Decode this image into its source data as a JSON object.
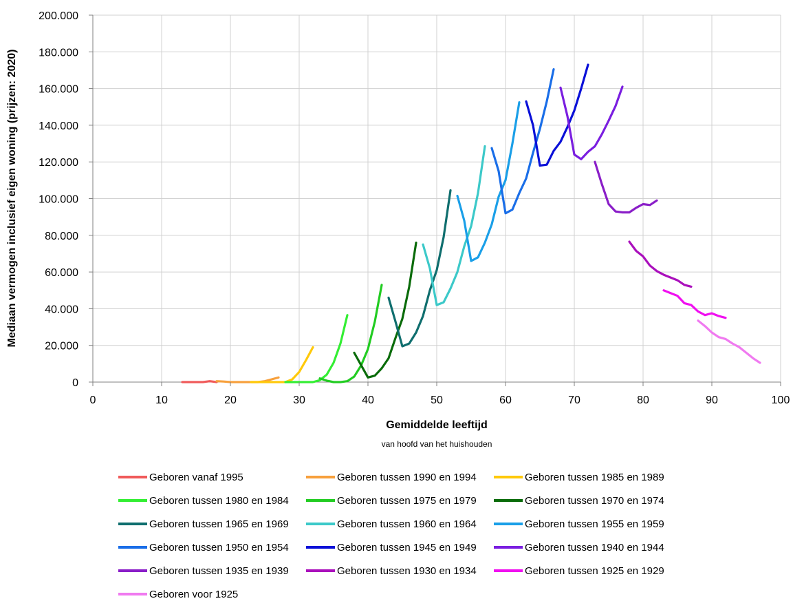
{
  "chart_data": {
    "type": "line",
    "xlabel": "Gemiddelde leeftijd",
    "xlabel_sub": "van hoofd van het huishouden",
    "ylabel": "Mediaan vermogen inclusief eigen woning (prijzen: 2020)",
    "xlim": [
      0,
      100
    ],
    "ylim": [
      0,
      200000
    ],
    "x_ticks": [
      0,
      10,
      20,
      30,
      40,
      50,
      60,
      70,
      80,
      90,
      100
    ],
    "x_tick_labels": [
      "0",
      "10",
      "20",
      "30",
      "40",
      "50",
      "60",
      "70",
      "80",
      "90",
      "100"
    ],
    "y_ticks": [
      0,
      20000,
      40000,
      60000,
      80000,
      100000,
      120000,
      140000,
      160000,
      180000,
      200000
    ],
    "y_tick_labels": [
      "0",
      "20.000",
      "40.000",
      "60.000",
      "80.000",
      "100.000",
      "120.000",
      "140.000",
      "160.000",
      "180.000",
      "200.000"
    ],
    "grid": true,
    "legend_position": "bottom",
    "series": [
      {
        "name": "Geboren vanaf 1995",
        "color": "#f05a5a",
        "x": [
          13,
          14,
          15,
          16,
          17,
          18
        ],
        "y": [
          0,
          0,
          0,
          0,
          500,
          0
        ]
      },
      {
        "name": "Geboren tussen 1990 en 1994",
        "color": "#f7a03c",
        "x": [
          18,
          19,
          20,
          21,
          22,
          23,
          24,
          25,
          26,
          27
        ],
        "y": [
          500,
          300,
          0,
          0,
          0,
          0,
          0,
          500,
          1500,
          2500
        ]
      },
      {
        "name": "Geboren tussen 1985 en 1989",
        "color": "#ffc90a",
        "x": [
          23,
          24,
          25,
          26,
          27,
          28,
          29,
          30,
          31,
          32
        ],
        "y": [
          0,
          0,
          0,
          0,
          0,
          0,
          1500,
          5500,
          12000,
          19000
        ]
      },
      {
        "name": "Geboren tussen 1980 en 1984",
        "color": "#33ee33",
        "x": [
          28,
          29,
          30,
          31,
          32,
          33,
          34,
          35,
          36,
          37
        ],
        "y": [
          0,
          0,
          0,
          0,
          0,
          1000,
          4000,
          10500,
          21000,
          36500
        ]
      },
      {
        "name": "Geboren tussen 1975 en 1979",
        "color": "#22cc22",
        "x": [
          33,
          34,
          35,
          36,
          37,
          38,
          39,
          40,
          41,
          42
        ],
        "y": [
          2000,
          800,
          0,
          0,
          500,
          3000,
          9000,
          18000,
          33000,
          53000
        ]
      },
      {
        "name": "Geboren tussen 1970 en 1974",
        "color": "#0a6b0a",
        "x": [
          38,
          40,
          41,
          42,
          43,
          44,
          45,
          46,
          47
        ],
        "y": [
          16000,
          2500,
          3500,
          7500,
          13000,
          24000,
          34500,
          52000,
          76000
        ]
      },
      {
        "name": "Geboren tussen 1965 en 1969",
        "color": "#0f6e6e",
        "x": [
          43,
          44,
          45,
          46,
          47,
          48,
          49,
          50,
          51,
          52
        ],
        "y": [
          46000,
          33000,
          19500,
          21000,
          27000,
          36000,
          50000,
          61000,
          79000,
          104500
        ]
      },
      {
        "name": "Geboren tussen 1960 en 1964",
        "color": "#3cc9c9",
        "x": [
          48,
          49,
          50,
          51,
          52,
          53,
          54,
          55,
          56,
          57
        ],
        "y": [
          75000,
          62000,
          42000,
          43500,
          51000,
          60000,
          74000,
          85000,
          103000,
          128500
        ]
      },
      {
        "name": "Geboren tussen 1955 en 1959",
        "color": "#1a9fe8",
        "x": [
          53,
          54,
          55,
          56,
          57,
          58,
          59,
          60,
          61,
          62
        ],
        "y": [
          101500,
          88000,
          66000,
          68000,
          76000,
          86000,
          101000,
          110000,
          130000,
          152500
        ]
      },
      {
        "name": "Geboren tussen 1950 en 1954",
        "color": "#1a6ee8",
        "x": [
          58,
          59,
          60,
          61,
          62,
          63,
          64,
          65,
          66,
          67
        ],
        "y": [
          127500,
          115000,
          92000,
          94000,
          103000,
          111000,
          125000,
          138000,
          153000,
          170500
        ]
      },
      {
        "name": "Geboren tussen 1945 en 1949",
        "color": "#0a10d8",
        "x": [
          63,
          64,
          65,
          66,
          67,
          68,
          69,
          70,
          71,
          72
        ],
        "y": [
          153000,
          140000,
          118000,
          118500,
          126000,
          131000,
          139000,
          148000,
          160000,
          173000
        ]
      },
      {
        "name": "Geboren tussen 1940 en 1944",
        "color": "#7a1ee0",
        "x": [
          68,
          69,
          70,
          71,
          72,
          73,
          74,
          75,
          76,
          77
        ],
        "y": [
          160500,
          145000,
          124000,
          121500,
          125500,
          128500,
          135000,
          142500,
          150500,
          161000
        ]
      },
      {
        "name": "Geboren tussen 1935 en 1939",
        "color": "#8a1ec8",
        "x": [
          73,
          74,
          75,
          76,
          77,
          78,
          79,
          80,
          81,
          82
        ],
        "y": [
          120000,
          108000,
          97000,
          93000,
          92500,
          92500,
          95000,
          97000,
          96500,
          99000
        ]
      },
      {
        "name": "Geboren tussen 1930 en 1934",
        "color": "#aa10bc",
        "x": [
          78,
          79,
          80,
          81,
          82,
          83,
          84,
          85,
          86,
          87
        ],
        "y": [
          76500,
          71500,
          68500,
          63500,
          60500,
          58500,
          57000,
          55500,
          53000,
          52000
        ]
      },
      {
        "name": "Geboren tussen 1925 en 1929",
        "color": "#f010f0",
        "x": [
          83,
          84,
          85,
          86,
          87,
          88,
          89,
          90,
          91,
          92
        ],
        "y": [
          50000,
          48500,
          47000,
          43000,
          42000,
          38500,
          36500,
          37500,
          36000,
          35000
        ]
      },
      {
        "name": "Geboren voor 1925",
        "color": "#f07af0",
        "x": [
          88,
          89,
          90,
          91,
          92,
          93,
          94,
          95,
          96,
          97
        ],
        "y": [
          33500,
          30500,
          27000,
          24500,
          23500,
          21000,
          19000,
          16000,
          13000,
          10500
        ]
      }
    ]
  }
}
